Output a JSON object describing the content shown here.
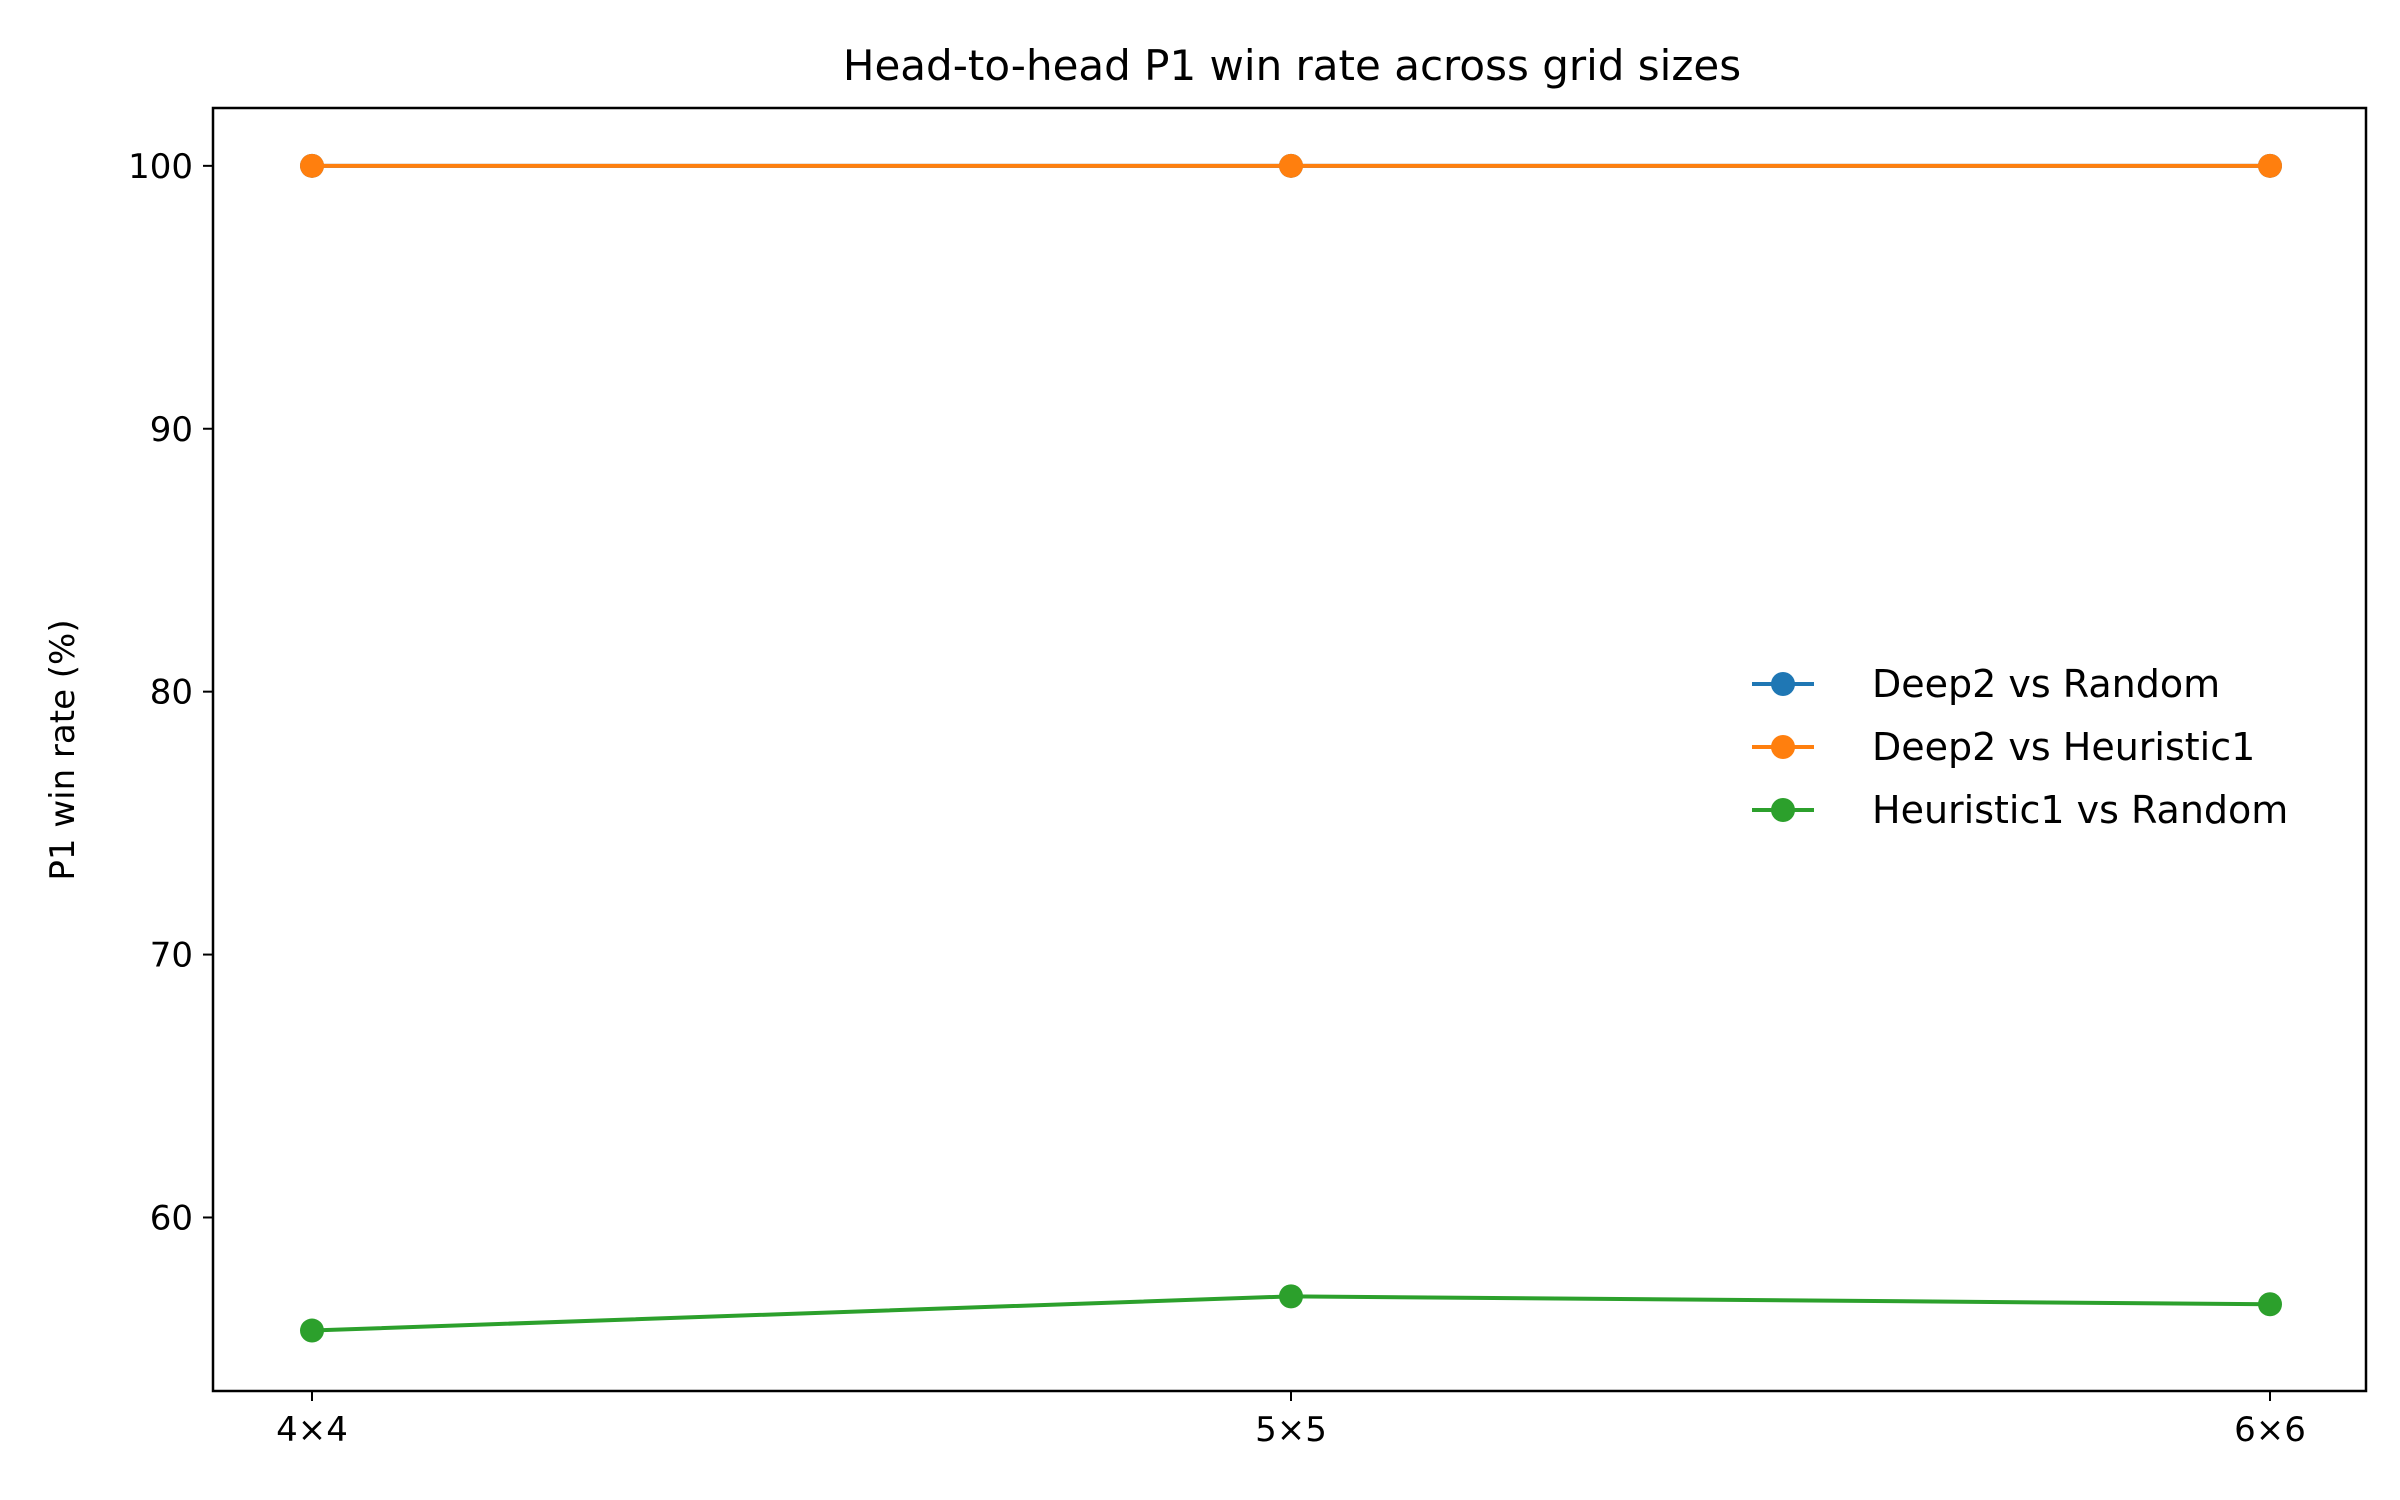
{
  "chart_data": {
    "type": "line",
    "title": "Head-to-head P1 win rate across grid sizes",
    "xlabel": "",
    "ylabel": "P1 win rate (%)",
    "categories": [
      "4×4",
      "5×5",
      "6×6"
    ],
    "ylim": [
      53.4,
      102.2
    ],
    "yticks": [
      60,
      70,
      80,
      90,
      100
    ],
    "grid": false,
    "legend_position": "center-right",
    "series": [
      {
        "name": "Deep2 vs Random",
        "color": "#1f77b4",
        "values": [
          100,
          100,
          100
        ]
      },
      {
        "name": "Deep2 vs Heuristic1",
        "color": "#ff7f0e",
        "values": [
          100,
          100,
          100
        ]
      },
      {
        "name": "Heuristic1 vs Random",
        "color": "#2ca02c",
        "values": [
          55.7,
          57.0,
          56.7
        ]
      }
    ]
  }
}
